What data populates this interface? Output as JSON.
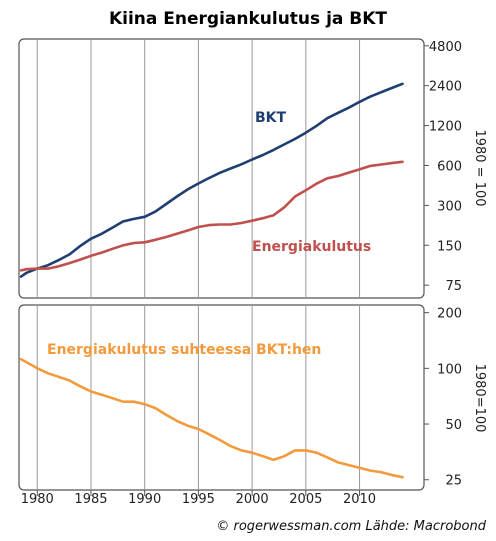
{
  "title": "Kiina Energiankulutus ja BKT",
  "credit": "© rogerwessman.com Lähde: Macrobond",
  "colors": {
    "gdp": "#1f3f73",
    "energy": "#c0504d",
    "intensity": "#f39a3c",
    "grid": "#999999",
    "frame": "#555555"
  },
  "chart_data": [
    {
      "type": "line",
      "log_scale": true,
      "ylabel": "1980 = 100",
      "yticks": [
        75,
        150,
        300,
        600,
        1200,
        2400,
        4800
      ],
      "ylim": [
        60,
        5400
      ],
      "xlim": [
        1978.3,
        2016
      ],
      "xticks": [
        1980,
        1985,
        1990,
        1995,
        2000,
        2005,
        2010
      ],
      "grid": "x",
      "series": [
        {
          "name": "BKT",
          "color": "#1f3f73",
          "x": [
            1978.5,
            1979,
            1980,
            1981,
            1982,
            1983,
            1984,
            1985,
            1986,
            1987,
            1988,
            1989,
            1990,
            1991,
            1992,
            1993,
            1994,
            1995,
            1996,
            1997,
            1998,
            1999,
            2000,
            2001,
            2002,
            2003,
            2004,
            2005,
            2006,
            2007,
            2008,
            2009,
            2010,
            2011,
            2012,
            2013,
            2014
          ],
          "values": [
            87,
            93,
            100,
            106,
            116,
            128,
            148,
            168,
            183,
            204,
            227,
            237,
            246,
            269,
            307,
            350,
            396,
            439,
            483,
            528,
            569,
            612,
            665,
            720,
            786,
            865,
            952,
            1060,
            1195,
            1365,
            1497,
            1638,
            1812,
            1985,
            2140,
            2305,
            2480
          ]
        },
        {
          "name": "Energiakulutus",
          "color": "#c0504d",
          "x": [
            1978.5,
            1979,
            1980,
            1981,
            1982,
            1983,
            1984,
            1985,
            1986,
            1987,
            1988,
            1989,
            1990,
            1991,
            1992,
            1993,
            1994,
            1995,
            1996,
            1997,
            1998,
            1999,
            2000,
            2001,
            2002,
            2003,
            2004,
            2005,
            2006,
            2007,
            2008,
            2009,
            2010,
            2011,
            2012,
            2013,
            2014
          ],
          "values": [
            97,
            99,
            100,
            100,
            104,
            110,
            117,
            125,
            132,
            141,
            150,
            156,
            158,
            165,
            173,
            183,
            194,
            206,
            213,
            215,
            215,
            221,
            230,
            240,
            253,
            290,
            350,
            390,
            438,
            480,
            500,
            530,
            560,
            595,
            610,
            625,
            640
          ]
        }
      ],
      "annotations": [
        "BKT",
        "Energiakulutus"
      ]
    },
    {
      "type": "line",
      "log_scale": true,
      "ylabel": "1980=100",
      "yticks": [
        25,
        50,
        100,
        200
      ],
      "ylim": [
        22,
        220
      ],
      "xlim": [
        1978.3,
        2016
      ],
      "xticks": [
        1980,
        1985,
        1990,
        1995,
        2000,
        2005,
        2010
      ],
      "xlabels": [
        "1980",
        "1985",
        "1990",
        "1995",
        "2000",
        "2005",
        "2010"
      ],
      "grid": "x",
      "series": [
        {
          "name": "Energiakulutus suhteessa BKT:hen",
          "color": "#f39a3c",
          "x": [
            1978.5,
            1979,
            1980,
            1981,
            1982,
            1983,
            1984,
            1985,
            1986,
            1987,
            1988,
            1989,
            1990,
            1991,
            1992,
            1993,
            1994,
            1995,
            1996,
            1997,
            1998,
            1999,
            2000,
            2001,
            2002,
            2003,
            2004,
            2005,
            2006,
            2007,
            2008,
            2009,
            2010,
            2011,
            2012,
            2013,
            2014
          ],
          "values": [
            112,
            108,
            100,
            94,
            90,
            86,
            80,
            75,
            72,
            69,
            66,
            66,
            64,
            61,
            56,
            52,
            49,
            47,
            44,
            41,
            38,
            36,
            35,
            33.5,
            32,
            33.5,
            36,
            36,
            35,
            33,
            31,
            30,
            29,
            28,
            27.5,
            26.5,
            25.8
          ]
        }
      ],
      "annotations": [
        "Energiakulutus suhteessa BKT:hen"
      ]
    }
  ]
}
